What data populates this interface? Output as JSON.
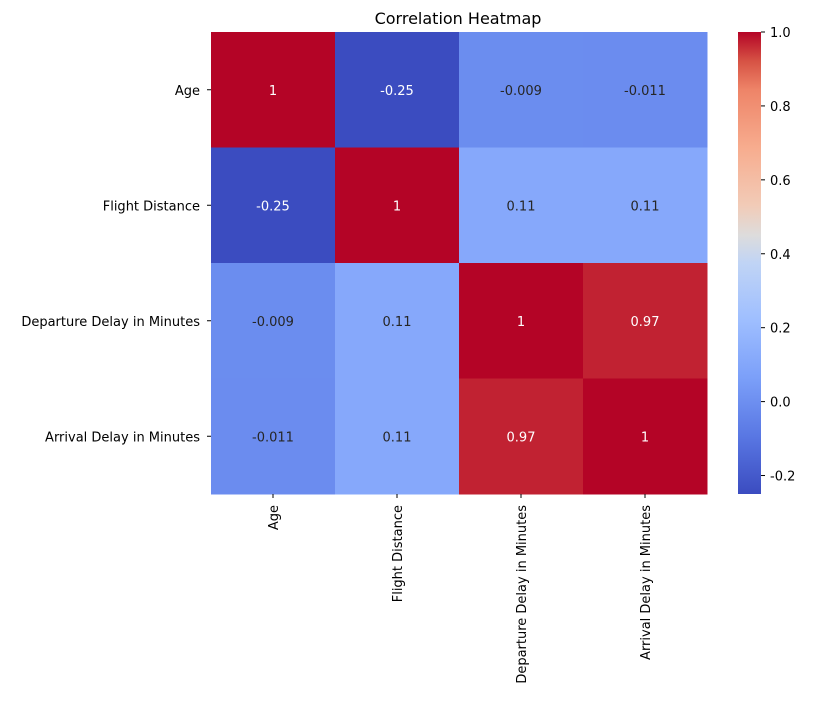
{
  "chart_data": {
    "type": "heatmap",
    "title": "Correlation Heatmap",
    "rows": [
      "Age",
      "Flight Distance",
      "Departure Delay in Minutes",
      "Arrival Delay in Minutes"
    ],
    "columns": [
      "Age",
      "Flight Distance",
      "Departure Delay in Minutes",
      "Arrival Delay in Minutes"
    ],
    "values": [
      [
        1,
        -0.25,
        -0.009,
        -0.011
      ],
      [
        -0.25,
        1,
        0.11,
        0.11
      ],
      [
        -0.009,
        0.11,
        1,
        0.97
      ],
      [
        -0.011,
        0.11,
        0.97,
        1
      ]
    ],
    "annotations": [
      [
        "1",
        "-0.25",
        "-0.009",
        "-0.011"
      ],
      [
        "-0.25",
        "1",
        "0.11",
        "0.11"
      ],
      [
        "-0.009",
        "0.11",
        "1",
        "0.97"
      ],
      [
        "-0.011",
        "0.11",
        "0.97",
        "1"
      ]
    ],
    "colormap": "coolwarm",
    "vmin": -0.25,
    "vmax": 1,
    "colorbar_ticks": [
      "-0.2",
      "0.0",
      "0.2",
      "0.4",
      "0.6",
      "0.8",
      "1.0"
    ],
    "colorbar_tick_values": [
      -0.2,
      0.0,
      0.2,
      0.4,
      0.6,
      0.8,
      1.0
    ],
    "grid": false,
    "colorbar_position": "right"
  }
}
